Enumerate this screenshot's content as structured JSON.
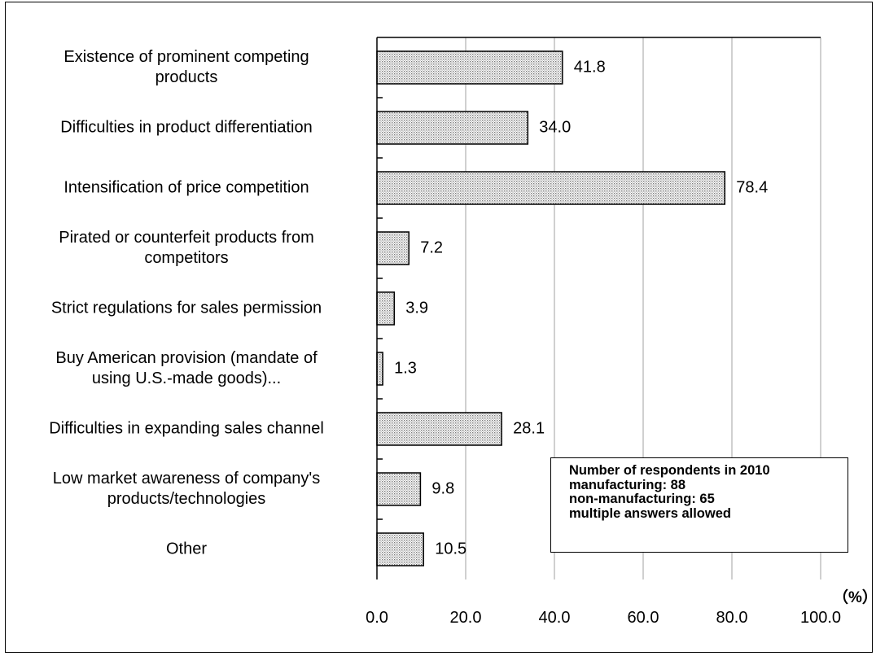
{
  "chart_data": {
    "type": "bar",
    "orientation": "horizontal",
    "categories": [
      "Existence of prominent competing\nproducts",
      "Difficulties in product differentiation",
      "Intensification of price competition",
      "Pirated or counterfeit products from\ncompetitors",
      "Strict regulations for sales permission",
      "Buy American provision (mandate of\nusing U.S.-made goods)...",
      "Difficulties in expanding sales channel",
      "Low market awareness of company's\nproducts/technologies",
      "Other"
    ],
    "values": [
      41.8,
      34.0,
      78.4,
      7.2,
      3.9,
      1.3,
      28.1,
      9.8,
      10.5
    ],
    "value_labels": [
      "41.8",
      "34.0",
      "78.4",
      "7.2",
      "3.9",
      "1.3",
      "28.1",
      "9.8",
      "10.5"
    ],
    "xlim": [
      0,
      100
    ],
    "x_ticks": [
      "0.0",
      "20.0",
      "40.0",
      "60.0",
      "80.0",
      "100.0"
    ],
    "xlabel": "（%）",
    "grid": "vertical",
    "bar_fill": "dotted-gray",
    "colors": {
      "bar_border": "#000000",
      "grid": "#b0b0b0",
      "bar_dot": "#7a7a7a"
    },
    "annotation": [
      "Number of respondents in 2010",
      "manufacturing: 88",
      "non-manufacturing: 65",
      "multiple answers allowed"
    ]
  }
}
